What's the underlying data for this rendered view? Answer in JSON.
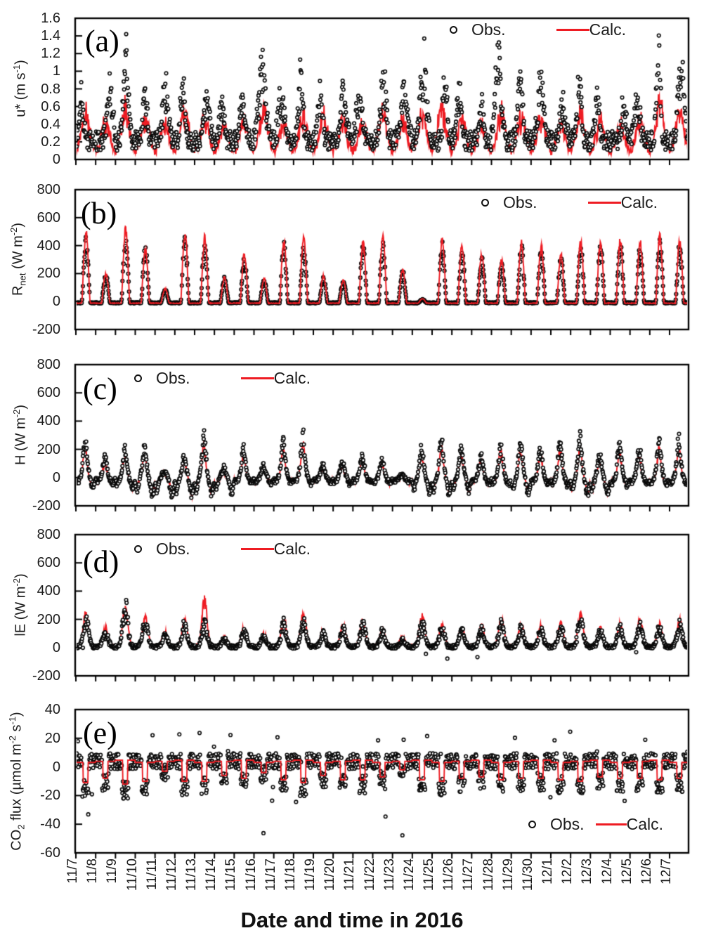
{
  "figure": {
    "xlabel": "Date and time in 2016"
  },
  "legend": {
    "obs": "Obs.",
    "calc": "Calc."
  },
  "colors": {
    "obs": "#0a0a0a",
    "calc": "#ee1c23",
    "axis": "#000000",
    "background": "#ffffff"
  },
  "panels": [
    {
      "tag": "(a)",
      "ylabel": {
        "pre": "u* (m s",
        "sub": "",
        "mid": "",
        "sup": "-1",
        "mid2": "",
        "sup2": "",
        "post": ")"
      }
    },
    {
      "tag": "(b)",
      "ylabel": {
        "pre": "R",
        "sub": "net",
        "mid": " (W m",
        "sup": "-2",
        "mid2": "",
        "sup2": "",
        "post": ")"
      }
    },
    {
      "tag": "(c)",
      "ylabel": {
        "pre": "H (W m",
        "sub": "",
        "mid": "",
        "sup": "-2",
        "mid2": "",
        "sup2": "",
        "post": ")"
      }
    },
    {
      "tag": "(d)",
      "ylabel": {
        "pre": "lE (W m",
        "sub": "",
        "mid": "",
        "sup": "-2",
        "mid2": "",
        "sup2": "",
        "post": ")"
      }
    },
    {
      "tag": "(e)",
      "ylabel": {
        "pre": "CO",
        "sub": "2",
        "mid": " flux (µmol m",
        "sup": "-2",
        "mid2": " s",
        "sup2": "-1",
        "post": ")"
      }
    }
  ],
  "chart_data": {
    "type": "multi-panel time series: Obs. = black open-circle scatter, Calc. = red line; half-hourly data",
    "x_axis_label": "Date and time in 2016",
    "x_range": [
      "11/7 00:00",
      "12/8 00:00"
    ],
    "x_categories": [
      "11/7",
      "11/8",
      "11/9",
      "11/10",
      "11/11",
      "11/12",
      "11/13",
      "11/14",
      "11/15",
      "11/16",
      "11/17",
      "11/18",
      "11/19",
      "11/20",
      "11/21",
      "11/22",
      "11/23",
      "11/24",
      "11/25",
      "11/26",
      "11/27",
      "11/28",
      "11/29",
      "11/30",
      "12/1",
      "12/2",
      "12/3",
      "12/4",
      "12/5",
      "12/6",
      "12/7"
    ],
    "panels": [
      {
        "id": "a",
        "kind": "ustar",
        "ylabel": "u* (m s⁻¹)",
        "ylim": [
          0,
          1.6
        ],
        "yticks": [
          0,
          0.2,
          0.4,
          0.6,
          0.8,
          1,
          1.2,
          1.4,
          1.6
        ],
        "legend_position": "inside top-right",
        "series": [
          {
            "name": "Obs.",
            "style": "black open circles",
            "daily_max": [
              0.65,
              0.7,
              1.35,
              0.62,
              0.75,
              0.8,
              0.62,
              0.45,
              0.5,
              1.05,
              0.6,
              0.85,
              0.75,
              0.6,
              0.55,
              0.9,
              0.68,
              1.05,
              1.0,
              0.65,
              0.55,
              1.2,
              0.85,
              0.8,
              0.55,
              0.8,
              0.62,
              0.55,
              0.6,
              1.3,
              0.95
            ]
          },
          {
            "name": "Calc.",
            "style": "red line",
            "daily_max": [
              0.55,
              0.45,
              0.65,
              0.5,
              0.42,
              0.62,
              0.5,
              0.4,
              0.45,
              0.68,
              0.45,
              0.55,
              0.52,
              0.45,
              0.42,
              0.6,
              0.48,
              0.55,
              0.65,
              0.48,
              0.42,
              0.58,
              0.5,
              0.52,
              0.42,
              0.55,
              0.45,
              0.42,
              0.45,
              0.68,
              0.6
            ]
          }
        ]
      },
      {
        "id": "b",
        "kind": "rnet",
        "ylabel": "Rnet (W m⁻²)",
        "ylim": [
          -200,
          800
        ],
        "yticks": [
          -200,
          0,
          200,
          400,
          600,
          800
        ],
        "legend_position": "inside top-right",
        "night_value": -10,
        "series": [
          {
            "name": "Obs.",
            "style": "black open circles",
            "daily_peak": [
              430,
              190,
              455,
              370,
              85,
              440,
              400,
              160,
              290,
              150,
              390,
              380,
              165,
              140,
              380,
              400,
              210,
              15,
              395,
              360,
              300,
              270,
              385,
              350,
              300,
              380,
              380,
              390,
              370,
              410,
              390
            ]
          },
          {
            "name": "Calc.",
            "style": "red line",
            "daily_peak": [
              490,
              200,
              520,
              370,
              90,
              490,
              450,
              170,
              330,
              160,
              420,
              440,
              180,
              150,
              420,
              450,
              230,
              20,
              440,
              400,
              330,
              300,
              430,
              390,
              330,
              420,
              420,
              430,
              420,
              460,
              430
            ]
          }
        ]
      },
      {
        "id": "c",
        "kind": "h",
        "ylabel": "H (W m⁻²)",
        "ylim": [
          -200,
          800
        ],
        "yticks": [
          -200,
          0,
          200,
          400,
          600,
          800
        ],
        "legend_position": "inside top-left",
        "night_dip_daily": [
          60,
          40,
          80,
          150,
          160,
          150,
          140,
          120,
          40,
          50,
          30,
          40,
          30,
          40,
          30,
          40,
          30,
          120,
          130,
          110,
          40,
          50,
          130,
          40,
          60,
          140,
          150,
          60,
          50,
          60,
          50
        ],
        "series": [
          {
            "name": "Obs.",
            "style": "black open circles",
            "daily_peak": [
              300,
              170,
              220,
              230,
              60,
              180,
              320,
              80,
              230,
              100,
              290,
              340,
              120,
              140,
              200,
              150,
              30,
              240,
              310,
              230,
              180,
              260,
              280,
              230,
              280,
              310,
              180,
              260,
              230,
              280,
              290
            ]
          },
          {
            "name": "Calc.",
            "style": "red line",
            "daily_peak": [
              250,
              140,
              190,
              190,
              50,
              150,
              260,
              70,
              190,
              80,
              240,
              280,
              100,
              110,
              170,
              120,
              25,
              200,
              260,
              190,
              150,
              220,
              230,
              190,
              230,
              260,
              150,
              220,
              190,
              230,
              240
            ]
          }
        ]
      },
      {
        "id": "d",
        "kind": "le",
        "ylabel": "lE (W m⁻²)",
        "ylim": [
          -200,
          800
        ],
        "yticks": [
          -200,
          0,
          200,
          400,
          600,
          800
        ],
        "legend_position": "inside top-left",
        "series": [
          {
            "name": "Obs.",
            "style": "black open circles",
            "daily_peak": [
              230,
              120,
              330,
              210,
              90,
              180,
              190,
              60,
              120,
              80,
              180,
              200,
              100,
              150,
              180,
              120,
              60,
              190,
              150,
              130,
              140,
              190,
              150,
              140,
              160,
              240,
              130,
              160,
              190,
              150,
              180
            ]
          },
          {
            "name": "Calc.",
            "style": "red line",
            "daily_peak": [
              250,
              130,
              300,
              230,
              100,
              200,
              350,
              70,
              140,
              90,
              200,
              270,
              110,
              160,
              190,
              130,
              70,
              230,
              160,
              140,
              150,
              200,
              160,
              150,
              170,
              250,
              140,
              170,
              200,
              160,
              190
            ]
          }
        ]
      },
      {
        "id": "e",
        "kind": "co2",
        "ylabel": "CO2 flux (µmol m⁻² s⁻¹)",
        "ylim": [
          -60,
          40
        ],
        "yticks": [
          -60,
          -40,
          -20,
          0,
          20,
          40
        ],
        "legend_position": "inside bottom-right",
        "calc_night_value": 4,
        "calc_day_dip_daily": [
          -11,
          -8,
          -12,
          -10,
          -3,
          -10,
          -10,
          -6,
          -8,
          -4,
          -9,
          -11,
          -6,
          -9,
          -9,
          -7,
          -2,
          -9,
          -10,
          -8,
          -7,
          -9,
          -8,
          -8,
          -9,
          -10,
          -7,
          -8,
          -8,
          -9,
          -8
        ],
        "series": [
          {
            "name": "Obs.",
            "style": "black open circles, night ~ +5, day ~ -12, outliers to -48 and +33"
          },
          {
            "name": "Calc.",
            "style": "red square-wave line: night plateau ~ +4, midday dip per daily array"
          }
        ]
      }
    ]
  }
}
